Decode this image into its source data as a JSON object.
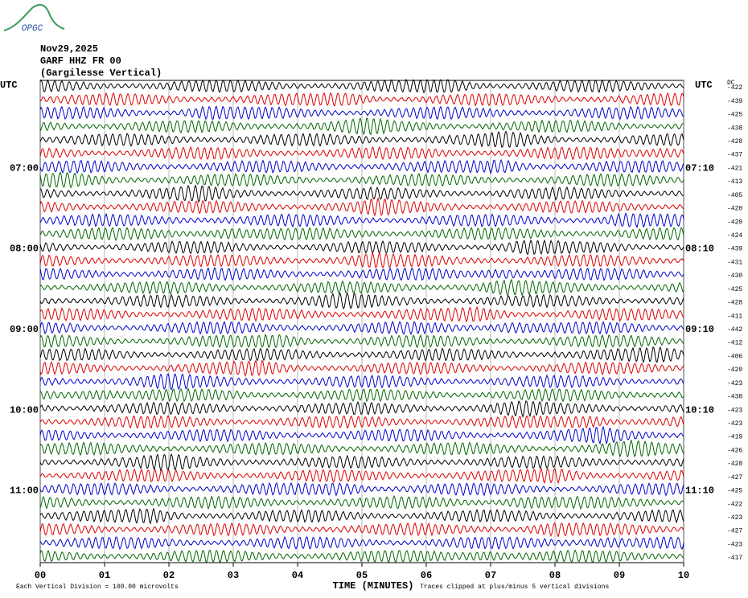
{
  "logo": "OPGC",
  "chart_data": {
    "type": "helicorder",
    "title": [
      "Nov29,2025",
      "GARF HHZ FR 00",
      "(Gargilesse Vertical)"
    ],
    "left_header": "UTC",
    "right_header": "UTC",
    "offset_header": "DC",
    "xlabel": "TIME (MINUTES)",
    "scale_note": "Each Vertical Division =  100.00 microvolts",
    "clip_note": "Traces clipped at plus/minus 5 vertical divisions",
    "xlim": [
      0,
      10
    ],
    "xticks": [
      {
        "value": 0,
        "label": "00"
      },
      {
        "value": 1,
        "label": "01"
      },
      {
        "value": 2,
        "label": "02"
      },
      {
        "value": 3,
        "label": "03"
      },
      {
        "value": 4,
        "label": "04"
      },
      {
        "value": 5,
        "label": "05"
      },
      {
        "value": 6,
        "label": "06"
      },
      {
        "value": 7,
        "label": "07"
      },
      {
        "value": 8,
        "label": "08"
      },
      {
        "value": 9,
        "label": "09"
      },
      {
        "value": 10,
        "label": "10"
      }
    ],
    "colors": [
      "#000000",
      "#dd0000",
      "#0000cc",
      "#006600"
    ],
    "offsets": [
      -422,
      -439,
      -425,
      -438,
      -428,
      -437,
      -421,
      -413,
      -405,
      -420,
      -420,
      -424,
      -439,
      -431,
      -430,
      -425,
      -428,
      -411,
      -442,
      -412,
      -406,
      -420,
      -423,
      -430,
      -423,
      -423,
      -419,
      -426,
      -428,
      -427,
      -425,
      -422,
      -423,
      -427,
      -423,
      -417
    ],
    "left_labels": [
      null,
      null,
      null,
      null,
      null,
      null,
      "07:00",
      null,
      null,
      null,
      null,
      null,
      "08:00",
      null,
      null,
      null,
      null,
      null,
      "09:00",
      null,
      null,
      null,
      null,
      null,
      "10:00",
      null,
      null,
      null,
      null,
      null,
      "11:00",
      null,
      null,
      null,
      null,
      null
    ],
    "right_labels": [
      null,
      null,
      null,
      null,
      null,
      null,
      "07:10",
      null,
      null,
      null,
      null,
      null,
      "08:10",
      null,
      null,
      null,
      null,
      null,
      "09:10",
      null,
      null,
      null,
      null,
      null,
      "10:10",
      null,
      null,
      null,
      null,
      null,
      "11:10",
      null,
      null,
      null,
      null,
      null
    ]
  }
}
